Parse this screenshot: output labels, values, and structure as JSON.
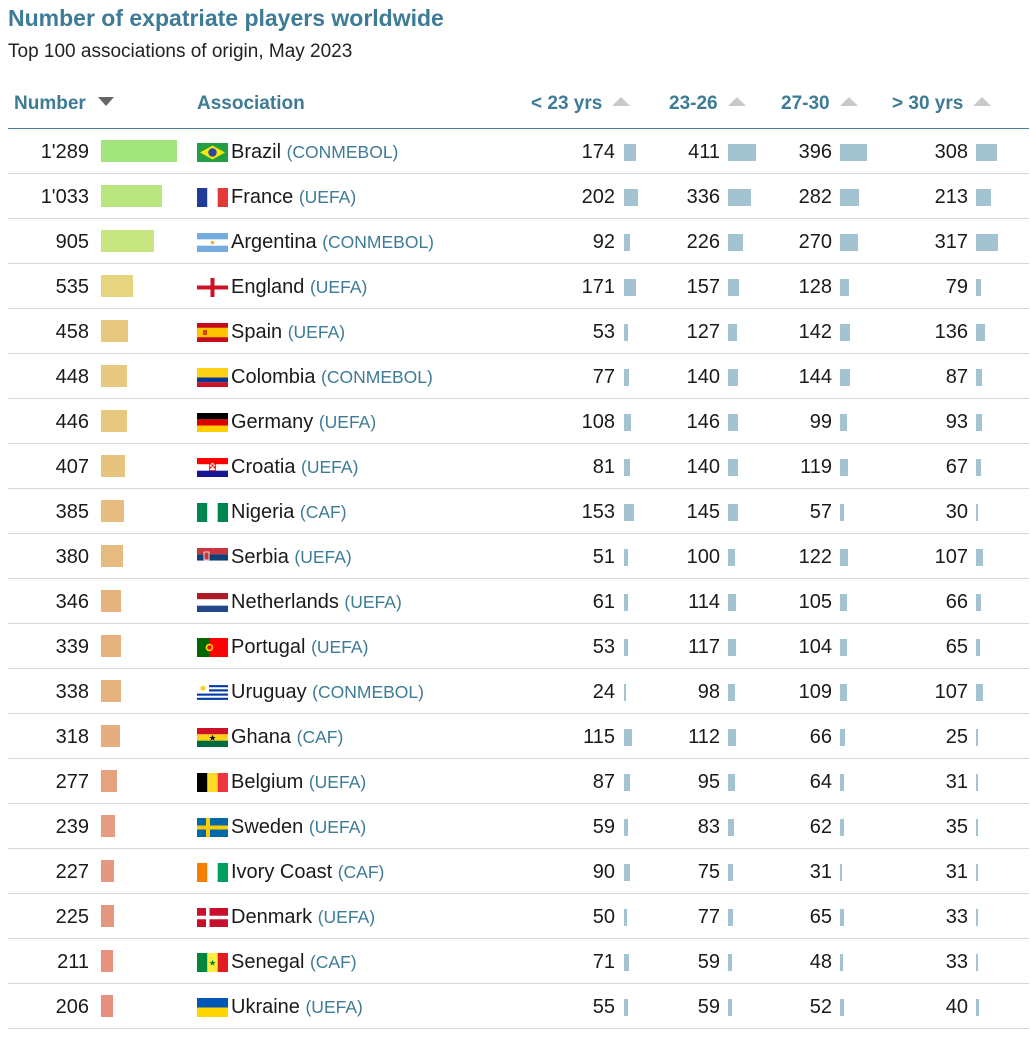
{
  "title": "Number of expatriate players worldwide",
  "subtitle": "Top 100 associations of origin, May 2023",
  "headers": {
    "number": "Number",
    "association": "Association",
    "u23": "< 23 yrs",
    "y23_26": "23-26",
    "y27_30": "27-30",
    "o30": "> 30 yrs"
  },
  "colors": {
    "title": "#3d7b96",
    "age_bar": "#a3c3d1"
  },
  "chart_data": {
    "type": "table",
    "sort": "Number descending",
    "columns": [
      "Number",
      "Association",
      "< 23 yrs",
      "23-26",
      "27-30",
      "> 30 yrs"
    ],
    "rows": [
      {
        "number": 1289,
        "number_label": "1'289",
        "association": "Brazil",
        "confederation": "(CONMEBOL)",
        "u23": 174,
        "y23_26": 411,
        "y27_30": 396,
        "o30": 308,
        "flag": "brazil-flag",
        "bar_color": "#a2e57c"
      },
      {
        "number": 1033,
        "number_label": "1'033",
        "association": "France",
        "confederation": "(UEFA)",
        "u23": 202,
        "y23_26": 336,
        "y27_30": 282,
        "o30": 213,
        "flag": "france-flag",
        "bar_color": "#b9e67e"
      },
      {
        "number": 905,
        "number_label": "905",
        "association": "Argentina",
        "confederation": "(CONMEBOL)",
        "u23": 92,
        "y23_26": 226,
        "y27_30": 270,
        "o30": 317,
        "flag": "argentina-flag",
        "bar_color": "#c7e67f"
      },
      {
        "number": 535,
        "number_label": "535",
        "association": "England",
        "confederation": "(UEFA)",
        "u23": 171,
        "y23_26": 157,
        "y27_30": 128,
        "o30": 79,
        "flag": "england-flag",
        "bar_color": "#e6d47f"
      },
      {
        "number": 458,
        "number_label": "458",
        "association": "Spain",
        "confederation": "(UEFA)",
        "u23": 53,
        "y23_26": 127,
        "y27_30": 142,
        "o30": 136,
        "flag": "spain-flag",
        "bar_color": "#e6c97f"
      },
      {
        "number": 448,
        "number_label": "448",
        "association": "Colombia",
        "confederation": "(CONMEBOL)",
        "u23": 77,
        "y23_26": 140,
        "y27_30": 144,
        "o30": 87,
        "flag": "colombia-flag",
        "bar_color": "#e6c87f"
      },
      {
        "number": 446,
        "number_label": "446",
        "association": "Germany",
        "confederation": "(UEFA)",
        "u23": 108,
        "y23_26": 146,
        "y27_30": 99,
        "o30": 93,
        "flag": "germany-flag",
        "bar_color": "#e6c87f"
      },
      {
        "number": 407,
        "number_label": "407",
        "association": "Croatia",
        "confederation": "(UEFA)",
        "u23": 81,
        "y23_26": 140,
        "y27_30": 119,
        "o30": 67,
        "flag": "croatia-flag",
        "bar_color": "#e6c47f"
      },
      {
        "number": 385,
        "number_label": "385",
        "association": "Nigeria",
        "confederation": "(CAF)",
        "u23": 153,
        "y23_26": 145,
        "y27_30": 57,
        "o30": 30,
        "flag": "nigeria-flag",
        "bar_color": "#e6bc7f"
      },
      {
        "number": 380,
        "number_label": "380",
        "association": "Serbia",
        "confederation": "(UEFA)",
        "u23": 51,
        "y23_26": 100,
        "y27_30": 122,
        "o30": 107,
        "flag": "serbia-flag",
        "bar_color": "#e6bb7f"
      },
      {
        "number": 346,
        "number_label": "346",
        "association": "Netherlands",
        "confederation": "(UEFA)",
        "u23": 61,
        "y23_26": 114,
        "y27_30": 105,
        "o30": 66,
        "flag": "netherlands-flag",
        "bar_color": "#e6b37f"
      },
      {
        "number": 339,
        "number_label": "339",
        "association": "Portugal",
        "confederation": "(UEFA)",
        "u23": 53,
        "y23_26": 117,
        "y27_30": 104,
        "o30": 65,
        "flag": "portugal-flag",
        "bar_color": "#e6b27f"
      },
      {
        "number": 338,
        "number_label": "338",
        "association": "Uruguay",
        "confederation": "(CONMEBOL)",
        "u23": 24,
        "y23_26": 98,
        "y27_30": 109,
        "o30": 107,
        "flag": "uruguay-flag",
        "bar_color": "#e6b27f"
      },
      {
        "number": 318,
        "number_label": "318",
        "association": "Ghana",
        "confederation": "(CAF)",
        "u23": 115,
        "y23_26": 112,
        "y27_30": 66,
        "o30": 25,
        "flag": "ghana-flag",
        "bar_color": "#e6ad7f"
      },
      {
        "number": 277,
        "number_label": "277",
        "association": "Belgium",
        "confederation": "(UEFA)",
        "u23": 87,
        "y23_26": 95,
        "y27_30": 64,
        "o30": 31,
        "flag": "belgium-flag",
        "bar_color": "#e6a27f"
      },
      {
        "number": 239,
        "number_label": "239",
        "association": "Sweden",
        "confederation": "(UEFA)",
        "u23": 59,
        "y23_26": 83,
        "y27_30": 62,
        "o30": 35,
        "flag": "sweden-flag",
        "bar_color": "#e69c7f"
      },
      {
        "number": 227,
        "number_label": "227",
        "association": "Ivory Coast",
        "confederation": "(CAF)",
        "u23": 90,
        "y23_26": 75,
        "y27_30": 31,
        "o30": 31,
        "flag": "ivory-coast-flag",
        "bar_color": "#e6977f"
      },
      {
        "number": 225,
        "number_label": "225",
        "association": "Denmark",
        "confederation": "(UEFA)",
        "u23": 50,
        "y23_26": 77,
        "y27_30": 65,
        "o30": 33,
        "flag": "denmark-flag",
        "bar_color": "#e6967f"
      },
      {
        "number": 211,
        "number_label": "211",
        "association": "Senegal",
        "confederation": "(CAF)",
        "u23": 71,
        "y23_26": 59,
        "y27_30": 48,
        "o30": 33,
        "flag": "senegal-flag",
        "bar_color": "#e6927f"
      },
      {
        "number": 206,
        "number_label": "206",
        "association": "Ukraine",
        "confederation": "(UEFA)",
        "u23": 55,
        "y23_26": 59,
        "y27_30": 52,
        "o30": 40,
        "flag": "ukraine-flag",
        "bar_color": "#e6917f"
      }
    ]
  }
}
